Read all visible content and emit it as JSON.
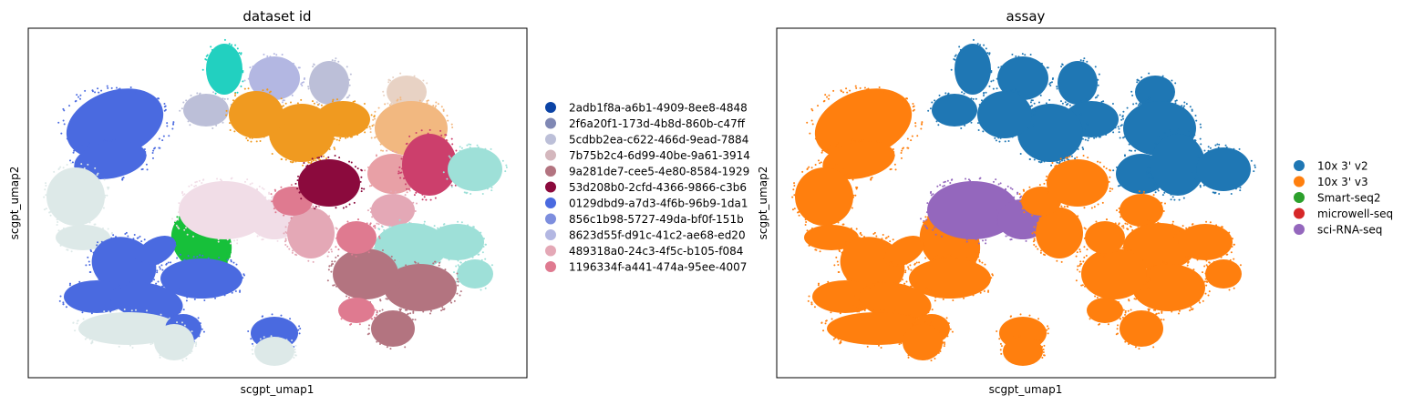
{
  "chart_data": [
    {
      "type": "scatter",
      "title": "dataset id",
      "xlabel": "scgpt_umap1",
      "ylabel": "scgpt_umap2",
      "legend_placement": "right",
      "grid": false,
      "series": [
        {
          "name": "2adb1f8a-a6b1-4909-8ee8-4848",
          "color": "#0b43a5"
        },
        {
          "name": "2f6a20f1-173d-4b8d-860b-c47ff",
          "color": "#8088b4"
        },
        {
          "name": "5cdbb2ea-c622-466d-9ead-7884",
          "color": "#bcbfd8"
        },
        {
          "name": "7b75b2c4-6d99-40be-9a61-3914",
          "color": "#d4b7bd"
        },
        {
          "name": "9a281de7-cee5-4e80-8584-1929",
          "color": "#b37480"
        },
        {
          "name": "53d208b0-2cfd-4366-9866-c3b6",
          "color": "#8b0a3d"
        },
        {
          "name": "0129dbd9-a7d3-4f6b-96b9-1da1",
          "color": "#4a6ae0"
        },
        {
          "name": "856c1b98-5727-49da-bf0f-151b",
          "color": "#7d8ede"
        },
        {
          "name": "8623d55f-d91c-41c2-ae68-ed20",
          "color": "#b3b7e2"
        },
        {
          "name": "489318a0-24c3-4f5c-b105-f084",
          "color": "#e4a8b6"
        },
        {
          "name": "1196334f-a441-474a-95ee-4007",
          "color": "#df7a90"
        }
      ]
    },
    {
      "type": "scatter",
      "title": "assay",
      "xlabel": "scgpt_umap1",
      "ylabel": "scgpt_umap2",
      "legend_placement": "right",
      "grid": false,
      "series": [
        {
          "name": "10x 3' v2",
          "color": "#1f77b4"
        },
        {
          "name": "10x 3' v3",
          "color": "#ff7f0e"
        },
        {
          "name": "Smart-seq2",
          "color": "#2ca02c"
        },
        {
          "name": "microwell-seq",
          "color": "#d62728"
        },
        {
          "name": "sci-RNA-seq",
          "color": "#9467bd"
        }
      ]
    }
  ]
}
